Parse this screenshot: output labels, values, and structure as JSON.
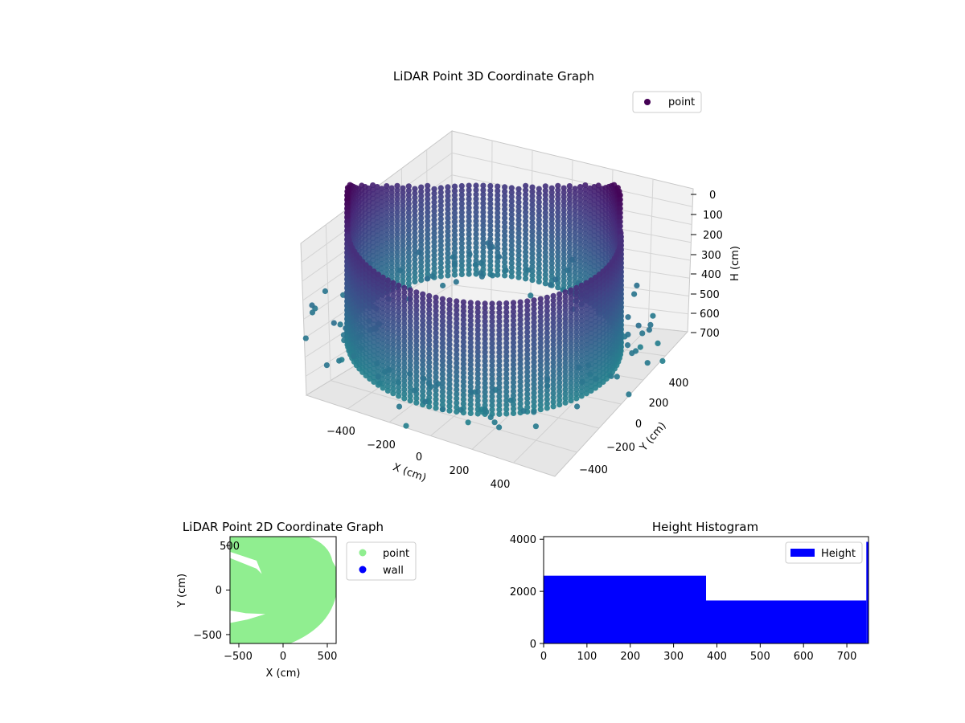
{
  "chart_data": [
    {
      "type": "scatter",
      "subtype": "3d",
      "title": "LiDAR Point 3D Coordinate Graph",
      "xlabel": "X (cm)",
      "ylabel": "Y (cm)",
      "zlabel": "H (cm)",
      "x_ticks": [
        "−400",
        "−200",
        "0",
        "200",
        "400"
      ],
      "y_ticks": [
        "−400",
        "−200",
        "0",
        "200",
        "400"
      ],
      "z_ticks": [
        "0",
        "100",
        "200",
        "300",
        "400",
        "500",
        "600",
        "700"
      ],
      "xlim": [
        -600,
        600
      ],
      "ylim": [
        -600,
        600
      ],
      "zlim": [
        0,
        750
      ],
      "z_inverted": true,
      "legend": {
        "entries": [
          "point"
        ],
        "location": "upper right"
      },
      "colormap": "viridis",
      "shape": "cylindrical wall of points, radius ~500 cm, heights 0-750 cm, cluster near top of far side",
      "grid": true
    },
    {
      "type": "scatter",
      "title": "LiDAR Point 2D Coordinate Graph",
      "xlabel": "X (cm)",
      "ylabel": "Y (cm)",
      "x_ticks": [
        "−500",
        "0",
        "500"
      ],
      "y_ticks": [
        "500",
        "0",
        "−500"
      ],
      "xlim": [
        -600,
        600
      ],
      "ylim": [
        -600,
        600
      ],
      "legend": {
        "entries": [
          "point",
          "wall"
        ],
        "location": "outside right",
        "colors": [
          "#90ee90",
          "#0000ff"
        ]
      },
      "fill_color": "#90ee90"
    },
    {
      "type": "bar",
      "subtype": "histogram",
      "title": "Height Histogram",
      "x_ticks": [
        "0",
        "100",
        "200",
        "300",
        "400",
        "500",
        "600",
        "700"
      ],
      "y_ticks": [
        "0",
        "2000",
        "4000"
      ],
      "xlim": [
        0,
        750
      ],
      "ylim": [
        0,
        4100
      ],
      "bins": [
        {
          "from": 0,
          "to": 375,
          "count": 2600
        },
        {
          "from": 375,
          "to": 745,
          "count": 1650
        },
        {
          "from": 745,
          "to": 750,
          "count": 3900
        }
      ],
      "series": [
        {
          "name": "Height",
          "color": "#0000ff"
        }
      ],
      "legend": {
        "entries": [
          "Height"
        ],
        "location": "upper right"
      }
    }
  ]
}
